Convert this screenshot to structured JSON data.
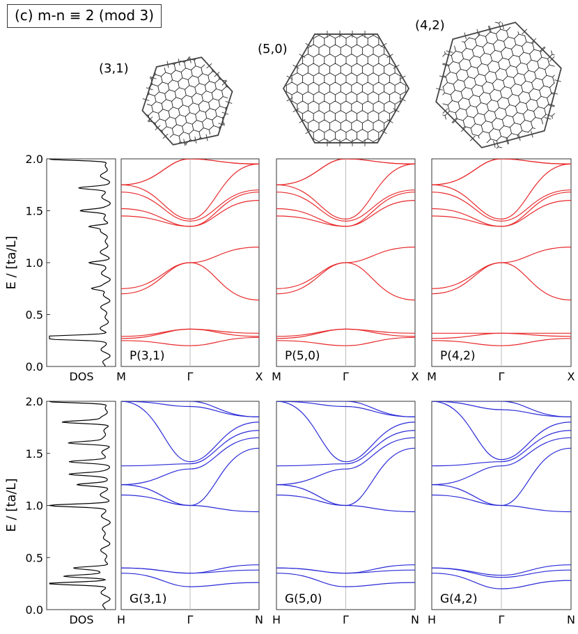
{
  "title": "(c) m-n ≡ 2 (mod 3)",
  "structures": [
    {
      "label": "(3,1)"
    },
    {
      "label": "(5,0)"
    },
    {
      "label": "(4,2)"
    }
  ],
  "chart_data": [
    {
      "type": "line",
      "ylabel": "E / [ta/L]",
      "ylim": [
        0.0,
        2.0
      ],
      "yticks": [
        "0.0",
        "0.5",
        "1.0",
        "1.5",
        "2.0"
      ],
      "dos_label": "DOS",
      "band_color": "#e8282a",
      "panels": [
        {
          "label": "P(3,1)",
          "xticks": [
            "M",
            "Γ",
            "X"
          ],
          "gamma_energies": [
            0.2,
            0.36,
            0.36,
            1.0,
            1.0,
            1.35,
            1.35,
            1.4,
            1.42,
            2.0,
            2.0
          ],
          "m_energies": [
            0.25,
            0.27,
            0.29,
            0.7,
            0.75,
            1.45,
            1.52,
            1.68,
            1.75
          ],
          "x_energies": [
            0.28,
            0.29,
            0.32,
            0.64,
            1.15,
            1.6,
            1.68,
            1.7,
            1.95
          ]
        },
        {
          "label": "P(5,0)",
          "xticks": [
            "M",
            "Γ",
            "X"
          ],
          "gamma_energies": [
            0.2,
            0.36,
            0.36,
            1.0,
            1.0,
            1.35,
            1.35,
            1.4,
            1.42,
            2.0,
            2.0
          ],
          "m_energies": [
            0.25,
            0.27,
            0.29,
            0.7,
            0.75,
            1.45,
            1.52,
            1.68,
            1.75
          ],
          "x_energies": [
            0.28,
            0.29,
            0.32,
            0.64,
            1.15,
            1.6,
            1.68,
            1.7,
            1.95
          ]
        },
        {
          "label": "P(4,2)",
          "xticks": [
            "M",
            "Γ",
            "X"
          ],
          "gamma_energies": [
            0.2,
            0.32,
            0.32,
            1.0,
            1.0,
            1.35,
            1.35,
            1.4,
            1.42,
            2.0,
            2.0
          ],
          "m_energies": [
            0.25,
            0.27,
            0.32,
            0.7,
            0.75,
            1.45,
            1.52,
            1.68,
            1.75
          ],
          "x_energies": [
            0.27,
            0.29,
            0.32,
            0.64,
            1.15,
            1.6,
            1.68,
            1.7,
            1.95
          ]
        }
      ],
      "dos_peaks": [
        [
          0.27,
          1.0
        ],
        [
          0.29,
          0.8
        ],
        [
          0.75,
          0.2
        ],
        [
          1.0,
          0.25
        ],
        [
          1.35,
          0.3
        ],
        [
          1.5,
          0.35
        ],
        [
          1.72,
          0.4
        ],
        [
          2.0,
          1.0
        ]
      ]
    },
    {
      "type": "line",
      "ylabel": "E / [ta/L]",
      "ylim": [
        0.0,
        2.0
      ],
      "yticks": [
        "0.0",
        "0.5",
        "1.0",
        "1.5",
        "2.0"
      ],
      "dos_label": "DOS",
      "band_color": "#2a2ad8",
      "panels": [
        {
          "label": "G(3,1)",
          "xticks": [
            "H",
            "Γ",
            "N"
          ],
          "gamma_energies": [
            0.22,
            0.35,
            0.35,
            1.0,
            1.0,
            1.35,
            1.4,
            1.42,
            1.95,
            2.0
          ],
          "m_energies": [
            0.35,
            0.4,
            0.4,
            1.1,
            1.2,
            1.2,
            1.38,
            2.0
          ],
          "x_energies": [
            0.26,
            0.38,
            0.43,
            0.94,
            1.55,
            1.65,
            1.72,
            1.8,
            1.85
          ]
        },
        {
          "label": "G(5,0)",
          "xticks": [
            "H",
            "Γ",
            "N"
          ],
          "gamma_energies": [
            0.22,
            0.35,
            0.35,
            1.0,
            1.0,
            1.35,
            1.4,
            1.42,
            1.95,
            2.0
          ],
          "m_energies": [
            0.35,
            0.4,
            0.4,
            1.1,
            1.2,
            1.2,
            1.38,
            2.0
          ],
          "x_energies": [
            0.26,
            0.38,
            0.43,
            0.94,
            1.55,
            1.65,
            1.72,
            1.8,
            1.85
          ]
        },
        {
          "label": "G(4,2)",
          "xticks": [
            "H",
            "Γ",
            "N"
          ],
          "gamma_energies": [
            0.2,
            0.31,
            0.33,
            1.0,
            1.0,
            1.38,
            1.42,
            1.44,
            1.92,
            2.0
          ],
          "m_energies": [
            0.35,
            0.4,
            0.4,
            1.1,
            1.2,
            1.2,
            1.38,
            2.0
          ],
          "x_energies": [
            0.28,
            0.38,
            0.43,
            0.94,
            1.55,
            1.65,
            1.72,
            1.8,
            1.85
          ]
        }
      ],
      "dos_peaks": [
        [
          0.25,
          0.9
        ],
        [
          0.32,
          0.7
        ],
        [
          0.4,
          0.5
        ],
        [
          1.0,
          0.9
        ],
        [
          1.2,
          0.45
        ],
        [
          1.3,
          0.5
        ],
        [
          1.42,
          0.55
        ],
        [
          1.6,
          0.6
        ],
        [
          1.8,
          0.7
        ],
        [
          2.0,
          1.0
        ]
      ]
    }
  ]
}
